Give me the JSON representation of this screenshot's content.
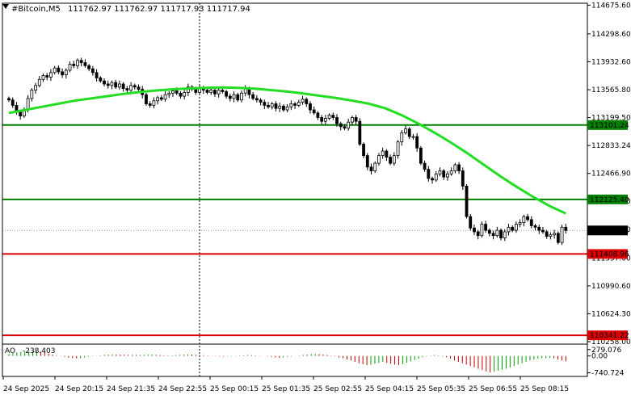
{
  "header": {
    "symbol": "#Bitcoin,M5",
    "ohlc": "111762.97 111762.97 111717.93 111717.94"
  },
  "colors": {
    "candle": "#000000",
    "ma": "#22dd22",
    "support_line": "#008000",
    "resistance_line": "#dd0000",
    "price_tag": "#000000",
    "ao_up": "#00a000",
    "ao_down": "#c00000"
  },
  "chart_data": {
    "type": "candlestick",
    "y_range": [
      110258.0,
      114700.0
    ],
    "y_ticks": [
      114675.0,
      114298.0,
      113932.0,
      113565.0,
      113199.0,
      112833.0,
      112466.0,
      112100.0,
      111733.0,
      111357.0,
      110990.0,
      110624.0,
      110258.0
    ],
    "y_tick_labels": [
      "114675.60",
      "114298.60",
      "113932.60",
      "113565.80",
      "113199.50",
      "112833.24",
      "112466.90",
      "112100.60",
      "111733.30",
      "111357.00",
      "110990.60",
      "110624.30",
      "110258.00"
    ],
    "x_labels": [
      "24 Sep 2025",
      "24 Sep 20:15",
      "24 Sep 21:35",
      "24 Sep 22:55",
      "25 Sep 00:15",
      "25 Sep 01:35",
      "25 Sep 02:55",
      "25 Sep 04:15",
      "25 Sep 05:35",
      "25 Sep 06:55",
      "25 Sep 08:15"
    ],
    "levels": [
      {
        "value": 113101.24,
        "label": "113101.24",
        "kind": "support"
      },
      {
        "value": 112125.4,
        "label": "112125.40",
        "kind": "support"
      },
      {
        "value": 111408.96,
        "label": "111408.96",
        "kind": "resistance"
      },
      {
        "value": 110341.22,
        "label": "110341.22",
        "kind": "resistance"
      }
    ],
    "current_price": {
      "value": 111717.94,
      "label": "111717.94"
    },
    "closes": [
      113430,
      113360,
      113280,
      113220,
      113300,
      113450,
      113560,
      113620,
      113700,
      113750,
      113730,
      113790,
      113850,
      113800,
      113760,
      113820,
      113900,
      113880,
      113950,
      113920,
      113880,
      113840,
      113790,
      113720,
      113680,
      113640,
      113620,
      113660,
      113600,
      113640,
      113580,
      113560,
      113620,
      113600,
      113570,
      113500,
      113380,
      113360,
      113420,
      113460,
      113440,
      113500,
      113520,
      113550,
      113520,
      113480,
      113530,
      113600,
      113570,
      113530,
      113590,
      113560,
      113530,
      113560,
      113510,
      113560,
      113540,
      113480,
      113450,
      113500,
      113430,
      113520,
      113580,
      113500,
      113450,
      113430,
      113400,
      113360,
      113340,
      113380,
      113320,
      113350,
      113300,
      113340,
      113380,
      113360,
      113400,
      113440,
      113380,
      113300,
      113260,
      113200,
      113150,
      113190,
      113230,
      113200,
      113120,
      113080,
      113060,
      113140,
      113200,
      113150,
      112850,
      112700,
      112550,
      112500,
      112600,
      112700,
      112760,
      112680,
      112600,
      112700,
      112880,
      113000,
      113050,
      112950,
      112950,
      112800,
      112600,
      112520,
      112400,
      112380,
      112460,
      112500,
      112420,
      112460,
      112500,
      112580,
      112500,
      112300,
      111900,
      111750,
      111700,
      111650,
      111800,
      111720,
      111680,
      111650,
      111720,
      111620,
      111700,
      111760,
      111720,
      111800,
      111820,
      111900,
      111860,
      111780,
      111760,
      111720,
      111700,
      111640,
      111660,
      111680,
      111560,
      111760,
      111718
    ],
    "ma": [
      113260,
      113300,
      113340,
      113380,
      113420,
      113450,
      113480,
      113510,
      113535,
      113555,
      113570,
      113582,
      113590,
      113595,
      113590,
      113578,
      113560,
      113540,
      113515,
      113485,
      113455,
      113420,
      113380,
      113320,
      113230,
      113120,
      113000,
      112870,
      112730,
      112580,
      112430,
      112290,
      112160,
      112040,
      111940
    ],
    "indicator": {
      "name": "AO",
      "value_label": "-238.403",
      "y_ticks": [
        {
          "value": 279.0,
          "label": "279.076"
        },
        {
          "value": 0.0,
          "label": "0.00"
        },
        {
          "value": -740.0,
          "label": "-740.724"
        }
      ],
      "y_range": [
        -900,
        450
      ],
      "values": [
        80,
        120,
        150,
        170,
        180,
        190,
        200,
        210,
        190,
        160,
        110,
        60,
        20,
        -10,
        -40,
        -70,
        -100,
        -110,
        -90,
        -60,
        -30,
        -10,
        10,
        30,
        50,
        60,
        70,
        65,
        60,
        55,
        50,
        45,
        40,
        45,
        50,
        55,
        60,
        50,
        40,
        30,
        20,
        30,
        40,
        50,
        60,
        70,
        60,
        50,
        40,
        30,
        20,
        10,
        -10,
        -20,
        -30,
        -20,
        -10,
        10,
        20,
        30,
        40,
        30,
        20,
        10,
        0,
        -20,
        -40,
        -60,
        -80,
        -60,
        -40,
        -20,
        0,
        20,
        40,
        60,
        80,
        90,
        80,
        60,
        40,
        20,
        -20,
        -60,
        -100,
        -150,
        -200,
        -260,
        -320,
        -360,
        -400,
        -380,
        -340,
        -300,
        -260,
        -300,
        -340,
        -380,
        -400,
        -360,
        -300,
        -240,
        -180,
        -120,
        -60,
        -20,
        20,
        40,
        20,
        -20,
        -60,
        -120,
        -200,
        -260,
        -320,
        -380,
        -440,
        -500,
        -560,
        -620,
        -680,
        -720,
        -700,
        -650,
        -600,
        -560,
        -500,
        -440,
        -380,
        -320,
        -260,
        -200,
        -150,
        -120,
        -100,
        -90,
        -80,
        -100,
        -150,
        -200,
        -238
      ]
    }
  }
}
